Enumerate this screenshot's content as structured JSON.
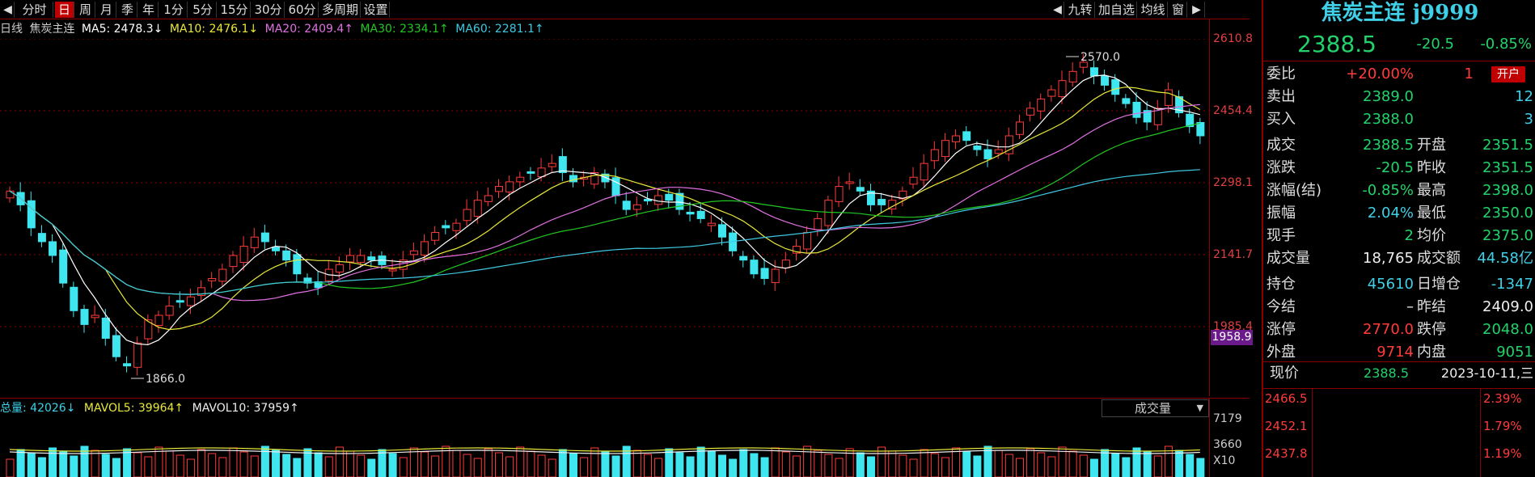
{
  "toolbar": {
    "items": [
      "分时",
      "日",
      "周",
      "月",
      "季",
      "年",
      "1分",
      "5分",
      "15分",
      "30分",
      "60分",
      "多周期",
      "设置"
    ],
    "active": "日",
    "right_items": [
      "九转",
      "加自选",
      "均线",
      "窗"
    ]
  },
  "ma_line": {
    "period": "日线",
    "name": "焦炭主连",
    "ma5": "MA5: 2478.3↓",
    "ma10": "MA10: 2476.1↓",
    "ma20": "MA20: 2409.4↑",
    "ma30": "MA30: 2334.1↑",
    "ma60": "MA60: 2281.1↑",
    "colors": {
      "ma5": "#ffffff",
      "ma10": "#e8e83a",
      "ma20": "#e070e0",
      "ma30": "#22c822",
      "ma60": "#3fc8e0"
    }
  },
  "price_axis": {
    "ticks": [
      "2610.8",
      "2454.4",
      "2298.1",
      "2141.7",
      "1985.4"
    ],
    "current_tag": "1958.9"
  },
  "annotations": {
    "high": "2570.0",
    "low": "1866.0"
  },
  "volume": {
    "total": "总量: 42026↓",
    "mavol5": "MAVOL5: 39964↑",
    "mavol10": "MAVOL10: 37959↑",
    "dropdown": "成交量",
    "axis": [
      "7179",
      "3660",
      "X10"
    ]
  },
  "panel": {
    "title": "焦炭主连 j9999",
    "price": "2388.5",
    "change": "-20.5",
    "change_pct": "-0.85%",
    "rows": [
      {
        "l1": "委比",
        "v1": "+20.00%",
        "v1c": "red",
        "l2": "",
        "v2": "1",
        "v2c": "red",
        "badge": "开户"
      },
      {
        "l1": "卖出",
        "v1": "2389.0",
        "v1c": "green",
        "l2": "",
        "v2": "12",
        "v2c": "cyan"
      },
      {
        "l1": "买入",
        "v1": "2388.0",
        "v1c": "green",
        "l2": "",
        "v2": "3",
        "v2c": "cyan"
      },
      {
        "l1": "成交",
        "v1": "2388.5",
        "v1c": "green",
        "l2": "开盘",
        "v2": "2351.5",
        "v2c": "green"
      },
      {
        "l1": "涨跌",
        "v1": "-20.5",
        "v1c": "green",
        "l2": "昨收",
        "v2": "2351.5",
        "v2c": "green"
      },
      {
        "l1": "涨幅(结)",
        "v1": "-0.85%",
        "v1c": "green",
        "l2": "最高",
        "v2": "2398.0",
        "v2c": "green"
      },
      {
        "l1": "振幅",
        "v1": "2.04%",
        "v1c": "cyan",
        "l2": "最低",
        "v2": "2350.0",
        "v2c": "green"
      },
      {
        "l1": "现手",
        "v1": "2",
        "v1c": "green",
        "l2": "均价",
        "v2": "2375.0",
        "v2c": "green"
      },
      {
        "l1": "成交量",
        "v1": "18,765",
        "v1c": "white",
        "l2": "成交额",
        "v2": "44.58亿",
        "v2c": "cyan"
      },
      {
        "l1": "持仓",
        "v1": "45610",
        "v1c": "cyan",
        "l2": "日增仓",
        "v2": "-1347",
        "v2c": "cyan"
      },
      {
        "l1": "今结",
        "v1": "–",
        "v1c": "white",
        "l2": "昨结",
        "v2": "2409.0",
        "v2c": "white"
      },
      {
        "l1": "涨停",
        "v1": "2770.0",
        "v1c": "red",
        "l2": "跌停",
        "v2": "2048.0",
        "v2c": "green"
      },
      {
        "l1": "外盘",
        "v1": "9714",
        "v1c": "red",
        "l2": "内盘",
        "v2": "9051",
        "v2c": "green"
      }
    ],
    "tick_header": {
      "label": "现价",
      "price": "2388.5",
      "date": "2023-10-11,三"
    },
    "mini_axis": [
      {
        "p": "2466.5",
        "pct": "2.39%"
      },
      {
        "p": "2452.1",
        "pct": "1.79%"
      },
      {
        "p": "2437.8",
        "pct": "1.19%"
      }
    ]
  }
}
